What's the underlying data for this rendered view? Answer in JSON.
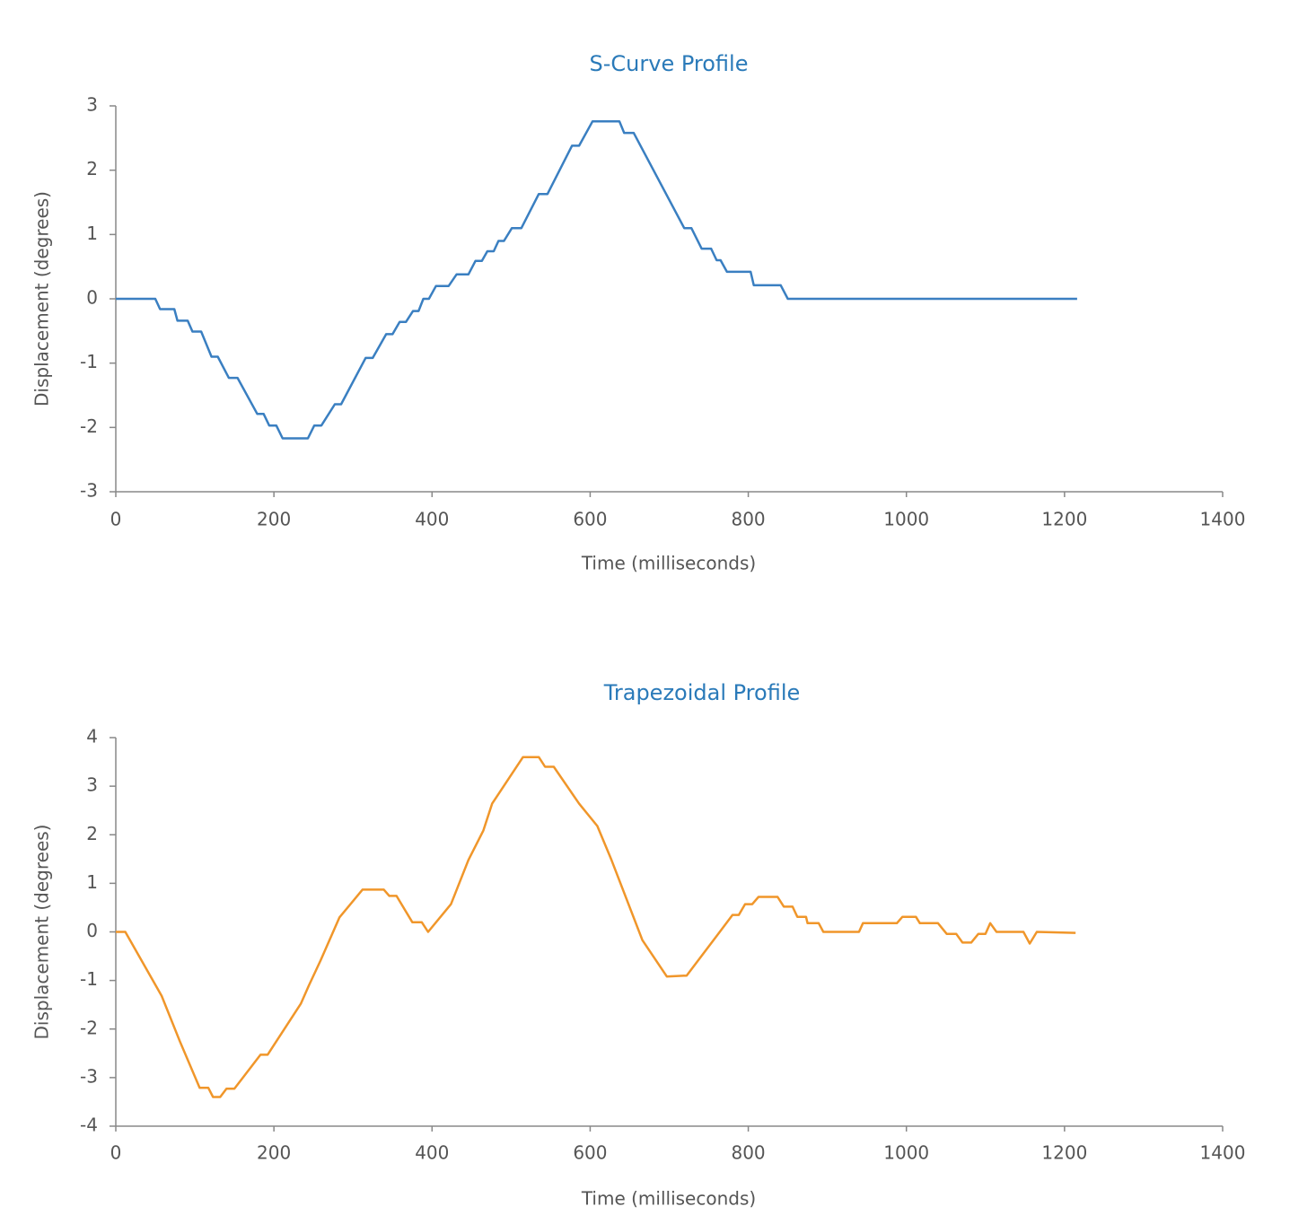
{
  "chart_data": [
    {
      "type": "line",
      "title": "S-Curve Profile",
      "xlabel": "Time (milliseconds)",
      "ylabel": "Displacement (degrees)",
      "color": "#3a7fc1",
      "xlim": [
        0,
        1400
      ],
      "xticks": [
        0,
        200,
        400,
        600,
        800,
        1000,
        1200,
        1400
      ],
      "ylim": [
        -3,
        3
      ],
      "yticks": [
        -3,
        -2,
        -1,
        0,
        1,
        2,
        3
      ],
      "x": [
        0,
        50,
        56,
        74,
        78,
        91,
        97,
        108,
        121,
        129,
        143,
        154,
        179,
        187,
        194,
        203,
        211,
        243,
        251,
        260,
        277,
        285,
        316,
        325,
        342,
        350,
        359,
        367,
        376,
        383,
        389,
        396,
        405,
        421,
        431,
        446,
        455,
        463,
        470,
        478,
        484,
        491,
        501,
        513,
        535,
        546,
        577,
        586,
        603,
        637,
        643,
        655,
        719,
        728,
        741,
        753,
        760,
        765,
        773,
        803,
        807,
        841,
        850,
        1216
      ],
      "values": [
        0,
        0,
        -0.16,
        -0.16,
        -0.34,
        -0.34,
        -0.51,
        -0.51,
        -0.9,
        -0.9,
        -1.23,
        -1.23,
        -1.79,
        -1.79,
        -1.97,
        -1.97,
        -2.17,
        -2.17,
        -1.97,
        -1.97,
        -1.64,
        -1.64,
        -0.92,
        -0.92,
        -0.55,
        -0.55,
        -0.36,
        -0.36,
        -0.19,
        -0.19,
        0,
        0,
        0.2,
        0.2,
        0.38,
        0.38,
        0.59,
        0.59,
        0.74,
        0.74,
        0.9,
        0.9,
        1.1,
        1.1,
        1.63,
        1.63,
        2.38,
        2.38,
        2.76,
        2.76,
        2.58,
        2.58,
        1.1,
        1.1,
        0.78,
        0.78,
        0.6,
        0.6,
        0.42,
        0.42,
        0.21,
        0.21,
        0,
        0
      ]
    },
    {
      "type": "line",
      "title": "Trapezoidal Profile",
      "xlabel": "Time (milliseconds)",
      "ylabel": "Displacement (degrees)",
      "color": "#f0962a",
      "xlim": [
        0,
        1400
      ],
      "xticks": [
        0,
        200,
        400,
        600,
        800,
        1000,
        1200,
        1400
      ],
      "ylim": [
        -4,
        4
      ],
      "yticks": [
        -4,
        -3,
        -2,
        -1,
        0,
        1,
        2,
        3,
        4
      ],
      "x": [
        0,
        12,
        58,
        81,
        106,
        117,
        123,
        132,
        140,
        150,
        183,
        192,
        234,
        244,
        259,
        283,
        312,
        339,
        346,
        355,
        375,
        387,
        395,
        424,
        446,
        465,
        476,
        515,
        535,
        543,
        554,
        586,
        609,
        627,
        666,
        697,
        722,
        762,
        780,
        788,
        796,
        805,
        813,
        837,
        845,
        856,
        862,
        873,
        875,
        889,
        895,
        940,
        945,
        988,
        995,
        1012,
        1017,
        1040,
        1051,
        1063,
        1071,
        1082,
        1091,
        1100,
        1106,
        1114,
        1148,
        1156,
        1165,
        1214
      ],
      "values": [
        0,
        0,
        -1.32,
        -2.25,
        -3.21,
        -3.21,
        -3.4,
        -3.4,
        -3.23,
        -3.23,
        -2.53,
        -2.53,
        -1.48,
        -1.11,
        -0.59,
        0.3,
        0.87,
        0.87,
        0.74,
        0.74,
        0.2,
        0.2,
        0,
        0.57,
        1.48,
        2.09,
        2.64,
        3.6,
        3.6,
        3.4,
        3.4,
        2.64,
        2.18,
        1.48,
        -0.17,
        -0.92,
        -0.9,
        -0.04,
        0.35,
        0.35,
        0.57,
        0.57,
        0.72,
        0.72,
        0.52,
        0.52,
        0.31,
        0.31,
        0.18,
        0.18,
        0,
        0,
        0.18,
        0.18,
        0.31,
        0.31,
        0.18,
        0.18,
        -0.04,
        -0.04,
        -0.22,
        -0.22,
        -0.04,
        -0.04,
        0.18,
        0,
        0,
        -0.24,
        0,
        -0.02
      ]
    }
  ]
}
